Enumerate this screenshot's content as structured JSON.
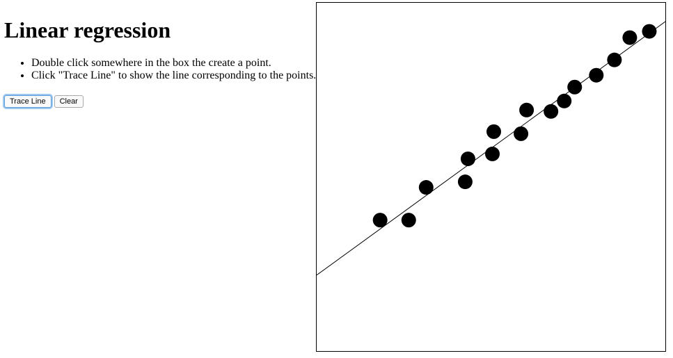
{
  "page": {
    "title": "Linear regression",
    "instructions": [
      "Double click somewhere in the box the create a point.",
      "Click \"Trace Line\" to show the line corresponding to the points."
    ]
  },
  "controls": {
    "trace_label": "Trace Line",
    "clear_label": "Clear"
  },
  "chart_data": {
    "type": "scatter",
    "xlim": [
      0,
      500
    ],
    "ylim": [
      0,
      500
    ],
    "grid": false,
    "points": [
      {
        "x": 91,
        "y": 188
      },
      {
        "x": 132,
        "y": 188
      },
      {
        "x": 157,
        "y": 235
      },
      {
        "x": 213,
        "y": 243
      },
      {
        "x": 217,
        "y": 276
      },
      {
        "x": 252,
        "y": 283
      },
      {
        "x": 254,
        "y": 315
      },
      {
        "x": 293,
        "y": 312
      },
      {
        "x": 301,
        "y": 346
      },
      {
        "x": 336,
        "y": 344
      },
      {
        "x": 355,
        "y": 359
      },
      {
        "x": 370,
        "y": 379
      },
      {
        "x": 401,
        "y": 396
      },
      {
        "x": 427,
        "y": 418
      },
      {
        "x": 449,
        "y": 450
      },
      {
        "x": 477,
        "y": 459
      }
    ],
    "trend_line": {
      "slope": 0.728,
      "intercept": 109
    }
  }
}
